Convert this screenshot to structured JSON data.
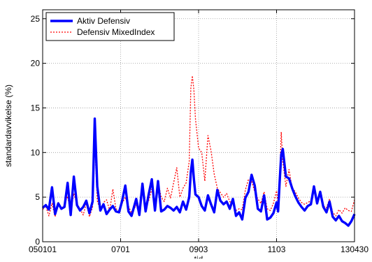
{
  "chart_data": {
    "type": "line",
    "title": "",
    "xlabel": "tid",
    "ylabel": "standardavvikelse (%)",
    "xlim": [
      0,
      100
    ],
    "ylim": [
      0,
      26
    ],
    "xtick_positions": [
      0,
      25,
      50,
      75,
      100
    ],
    "xtick_labels": [
      "050101",
      "0701",
      "0903",
      "1103",
      "130430"
    ],
    "yticks": [
      0,
      5,
      10,
      15,
      20,
      25
    ],
    "ytick_labels": [
      "0",
      "5",
      "10",
      "15",
      "20",
      "25"
    ],
    "grid": true,
    "legend": {
      "position": "top-left"
    },
    "series": [
      {
        "name": "Aktiv Defensiv",
        "color": "#0000ff",
        "style": "solid-thick",
        "x": [
          0,
          1,
          2,
          3,
          4,
          5,
          6,
          7,
          8,
          9,
          10,
          11,
          12,
          13,
          14,
          15,
          16,
          16.7,
          17.5,
          18.5,
          19.5,
          20.5,
          21.5,
          22.5,
          23.5,
          24.5,
          25.5,
          26.5,
          27.5,
          28.5,
          30,
          31,
          32,
          33,
          34,
          35,
          36,
          37,
          38,
          39,
          40,
          41,
          42,
          43,
          44,
          45,
          46,
          47,
          47.5,
          48,
          48.5,
          49,
          50,
          51,
          52,
          53,
          54,
          55,
          56,
          57,
          58,
          59,
          60,
          61,
          62,
          63,
          64,
          65,
          66,
          67,
          68,
          69,
          70,
          71,
          72,
          73,
          74,
          75,
          75.5,
          76,
          76.5,
          77,
          78,
          79,
          80,
          81,
          82,
          83,
          84,
          85,
          86,
          87,
          88,
          89,
          90,
          91,
          92,
          93,
          94,
          95,
          96,
          97,
          98,
          99,
          100
        ],
        "values": [
          3.8,
          4.1,
          3.6,
          6.1,
          3.1,
          4.3,
          3.7,
          3.9,
          6.6,
          3.0,
          7.3,
          4.1,
          3.5,
          3.9,
          4.6,
          3.2,
          4.5,
          13.8,
          6.2,
          3.5,
          4.2,
          3.1,
          3.6,
          4.0,
          3.4,
          3.3,
          4.6,
          6.3,
          3.4,
          2.9,
          4.8,
          3.0,
          6.5,
          3.4,
          5.3,
          7.0,
          3.5,
          6.8,
          3.4,
          3.6,
          4.0,
          3.8,
          3.5,
          3.9,
          3.3,
          4.5,
          3.6,
          5.0,
          7.8,
          9.2,
          7.0,
          5.3,
          5.0,
          4.0,
          3.5,
          5.2,
          4.2,
          3.3,
          5.8,
          4.6,
          4.2,
          4.5,
          3.7,
          4.8,
          2.9,
          3.3,
          2.5,
          4.9,
          5.6,
          7.5,
          6.3,
          3.7,
          3.4,
          5.2,
          2.5,
          2.7,
          3.2,
          4.4,
          3.4,
          6.8,
          9.8,
          10.4,
          7.3,
          7.1,
          6.0,
          5.1,
          4.4,
          3.9,
          3.5,
          4.0,
          4.2,
          6.2,
          4.3,
          5.6,
          3.9,
          3.3,
          4.5,
          2.8,
          2.4,
          2.9,
          2.3,
          2.1,
          1.8,
          2.3,
          3.1
        ]
      },
      {
        "name": "Defensiv MixedIndex",
        "color": "#ff0000",
        "style": "dotted",
        "x": [
          0,
          1,
          2,
          3,
          4,
          5,
          6,
          7,
          8,
          9,
          10,
          11,
          12,
          13,
          14,
          15,
          16,
          16.7,
          17.5,
          18.5,
          19.5,
          20.5,
          21.5,
          22.5,
          23.5,
          24.5,
          25.5,
          26.5,
          27.5,
          28.5,
          30,
          31,
          32,
          33,
          34,
          35,
          36,
          37,
          38,
          39,
          40,
          41,
          42,
          43,
          44,
          45,
          46,
          47,
          47.5,
          48,
          48.5,
          49,
          50,
          51,
          52,
          53,
          54,
          55,
          56,
          57,
          58,
          59,
          60,
          61,
          62,
          63,
          64,
          65,
          66,
          67,
          68,
          69,
          70,
          71,
          72,
          73,
          74,
          75,
          75.5,
          76,
          76.5,
          77,
          78,
          79,
          80,
          81,
          82,
          83,
          84,
          85,
          86,
          87,
          88,
          89,
          90,
          91,
          92,
          93,
          94,
          95,
          96,
          97,
          98,
          99,
          100
        ],
        "values": [
          3.6,
          4.0,
          2.9,
          4.3,
          2.8,
          4.4,
          3.7,
          4.2,
          5.1,
          3.2,
          5.4,
          4.2,
          3.7,
          3.0,
          4.3,
          2.8,
          3.9,
          11.1,
          4.6,
          3.5,
          4.4,
          4.7,
          3.5,
          5.9,
          3.7,
          3.5,
          4.3,
          5.0,
          4.0,
          3.2,
          4.1,
          3.1,
          5.9,
          3.8,
          4.6,
          5.9,
          4.2,
          6.7,
          5.0,
          4.5,
          6.0,
          4.9,
          6.6,
          8.3,
          5.0,
          6.0,
          6.6,
          9.0,
          17.2,
          18.6,
          17.0,
          13.8,
          10.5,
          10.0,
          6.8,
          11.9,
          10.2,
          7.6,
          6.0,
          5.5,
          5.0,
          5.4,
          4.5,
          4.2,
          3.5,
          3.7,
          3.6,
          5.8,
          7.0,
          6.8,
          5.6,
          4.8,
          4.3,
          5.6,
          3.7,
          3.5,
          4.3,
          5.7,
          4.2,
          7.3,
          12.3,
          9.0,
          6.2,
          8.1,
          6.0,
          5.6,
          4.9,
          4.4,
          4.2,
          4.4,
          4.6,
          5.8,
          4.7,
          5.4,
          4.0,
          3.8,
          4.8,
          3.3,
          2.9,
          3.6,
          3.2,
          3.8,
          3.5,
          3.4,
          4.7
        ]
      }
    ]
  }
}
